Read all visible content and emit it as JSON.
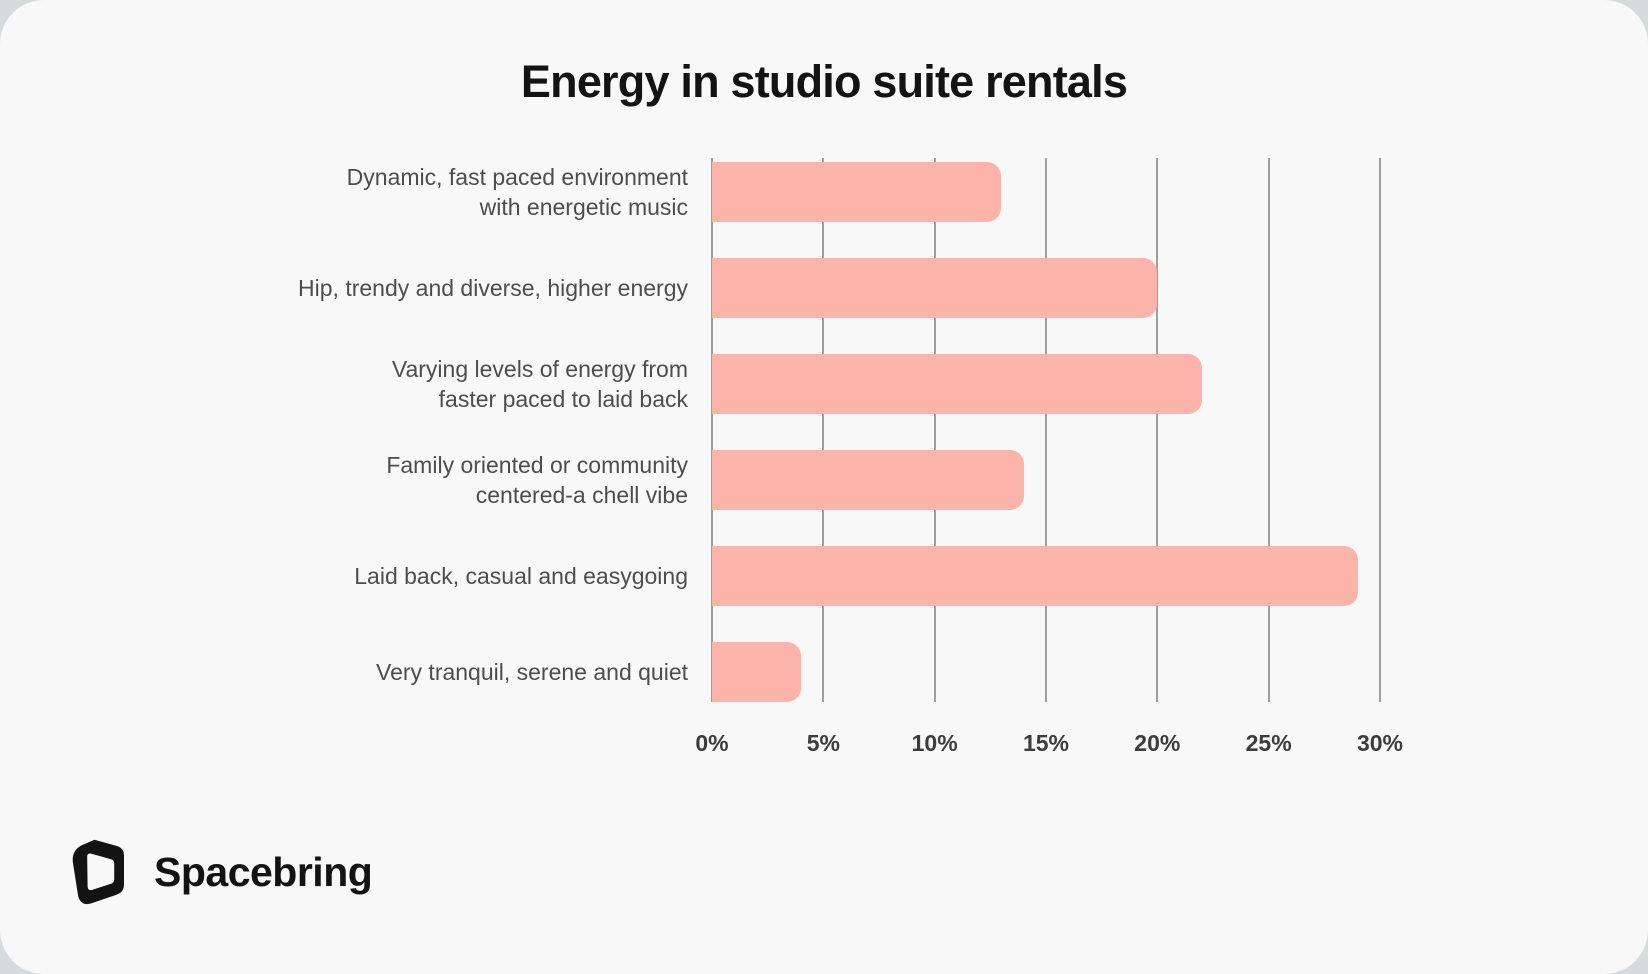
{
  "page": {
    "background": "#d8dbdc",
    "card_background": "#f8f8f8"
  },
  "chart_data": {
    "type": "bar",
    "orientation": "horizontal",
    "title": "Energy in studio suite rentals",
    "categories": [
      "Dynamic, fast paced environment\nwith energetic music",
      "Hip, trendy and diverse, higher energy",
      "Varying levels of energy from\nfaster paced to laid back",
      "Family oriented or community\ncentered-a chell vibe",
      "Laid back, casual and easygoing",
      "Very tranquil, serene and quiet"
    ],
    "values": [
      13,
      20,
      22,
      14,
      29,
      4
    ],
    "unit": "%",
    "xlim": [
      0,
      30
    ],
    "x_ticks": [
      "0%",
      "5%",
      "10%",
      "15%",
      "20%",
      "25%",
      "30%"
    ],
    "grid": true,
    "legend": "none",
    "bar_color": "#fcb4aa",
    "gridline_color": "#9e9e9e",
    "label_color": "#4d4d4d",
    "tick_color": "#3c3c3c"
  },
  "footer": {
    "brand": "Spacebring"
  }
}
